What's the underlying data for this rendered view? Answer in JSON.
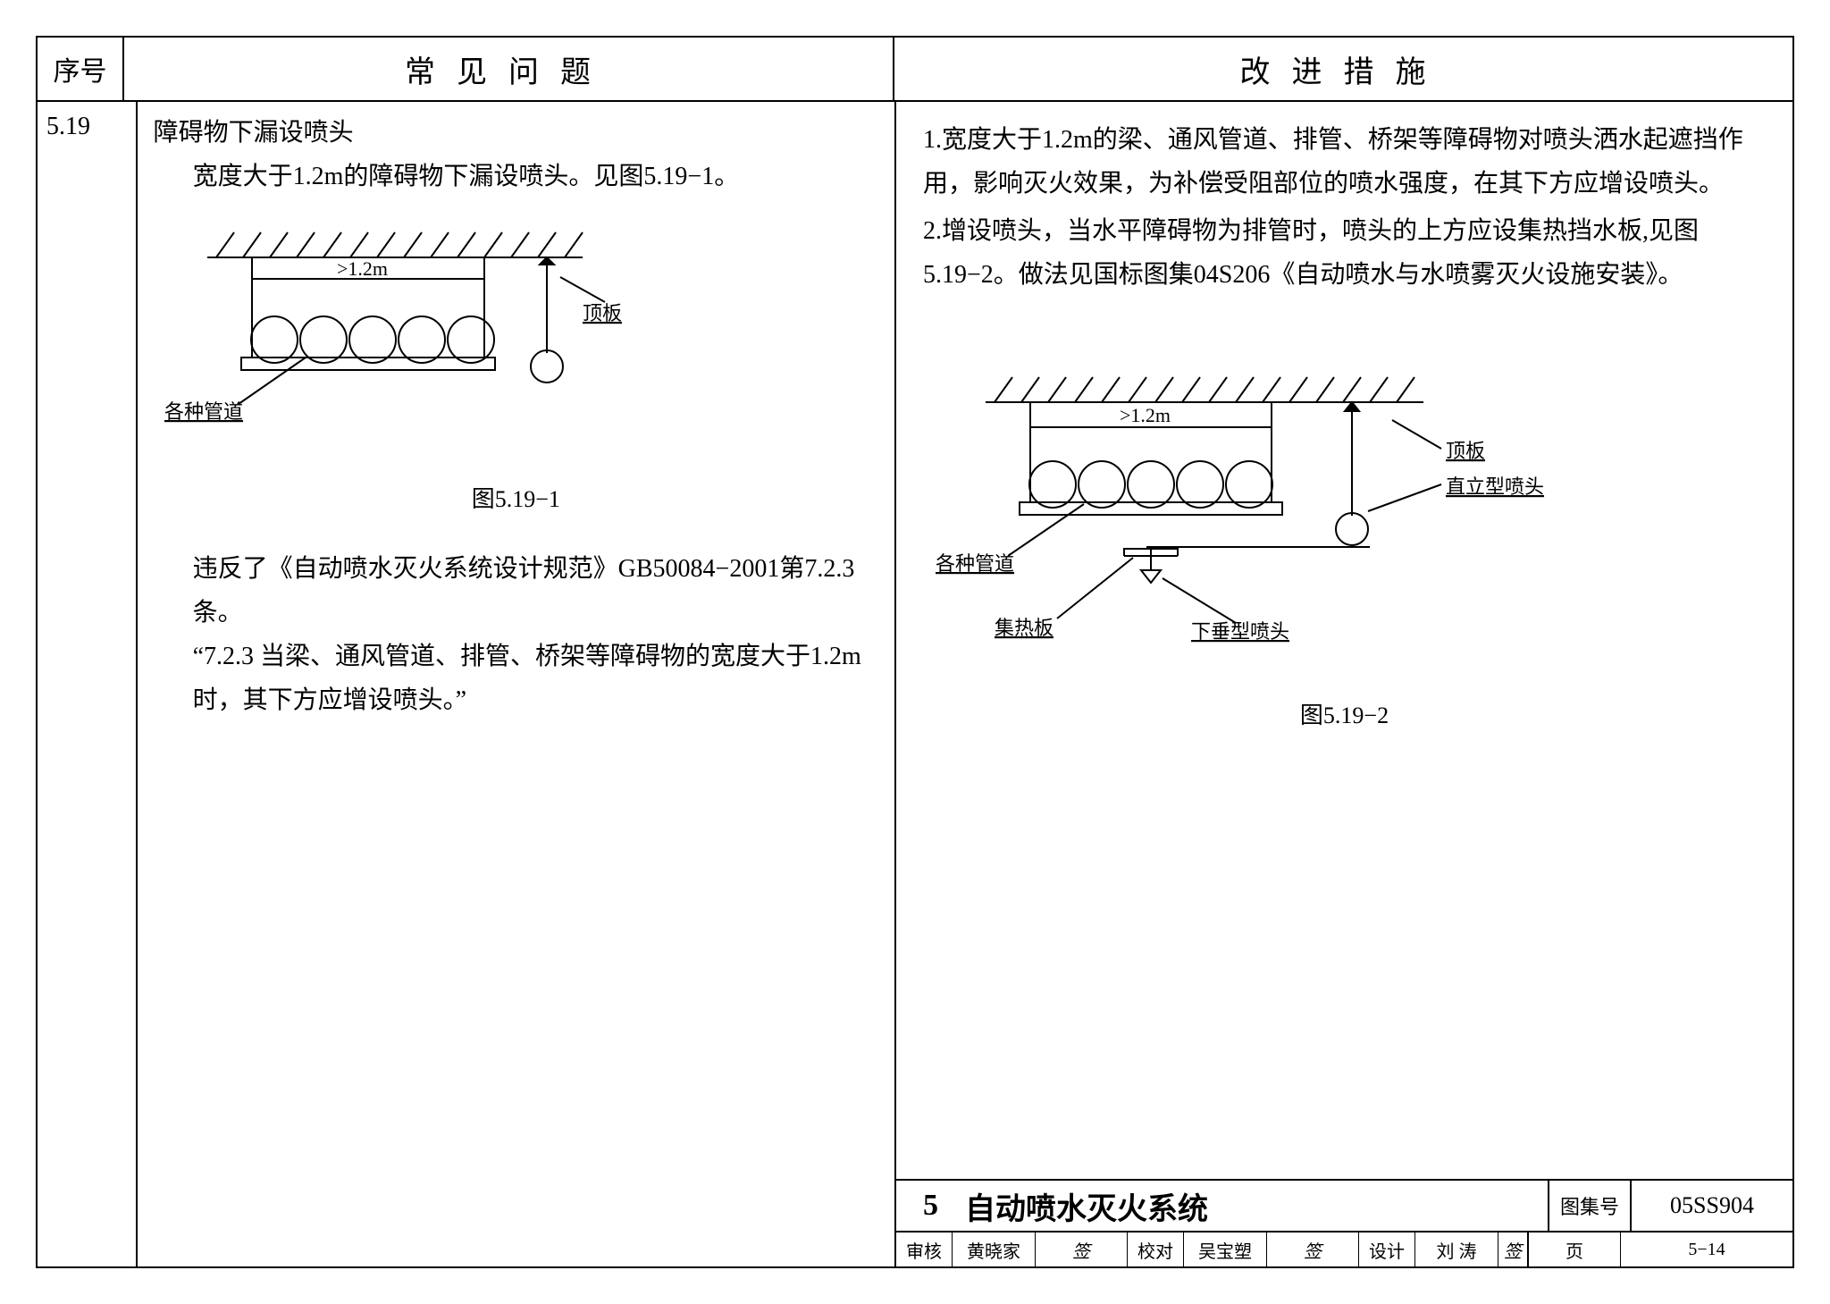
{
  "header": {
    "col_num": "序号",
    "col_problem": "常见问题",
    "col_measure": "改进措施"
  },
  "row": {
    "num": "5.19",
    "problem": {
      "title": "障碍物下漏设喷头",
      "p1": "宽度大于1.2m的障碍物下漏设喷头。见图5.19−1。",
      "fig1_caption": "图5.19−1",
      "p2": "违反了《自动喷水灭火系统设计规范》GB50084−2001第7.2.3条。",
      "p3": "“7.2.3  当梁、通风管道、排管、桥架等障碍物的宽度大于1.2m时，其下方应增设喷头。”"
    },
    "measure": {
      "m1": "1.宽度大于1.2m的梁、通风管道、排管、桥架等障碍物对喷头洒水起遮挡作用，影响灭火效果，为补偿受阻部位的喷水强度，在其下方应增设喷头。",
      "m2": "2.增设喷头，当水平障碍物为排管时，喷头的上方应设集热挡水板,见图5.19−2。做法见国标图集04S206《自动喷水与水喷雾灭火设施安装》。",
      "fig2_caption": "图5.19−2"
    }
  },
  "fig": {
    "dim_label": ">1.2m",
    "label_top": "顶板",
    "label_pipes": "各种管道",
    "label_upright": "直立型喷头",
    "label_pendant": "下垂型喷头",
    "label_plate": "集热板",
    "stroke": "#000000",
    "bg": "#ffffff",
    "dim_font": 22,
    "label_font": 22
  },
  "titleblock": {
    "chapter_no": "5",
    "chapter_title": "自动喷水灭火系统",
    "set_label": "图集号",
    "set_val": "05SS904",
    "page_label": "页",
    "page_val": "5−14",
    "audit_l": "审核",
    "audit_v": "黄晓家",
    "check_l": "校对",
    "check_v": "吴宝塑",
    "design_l": "设计",
    "design_v": "刘 涛"
  }
}
